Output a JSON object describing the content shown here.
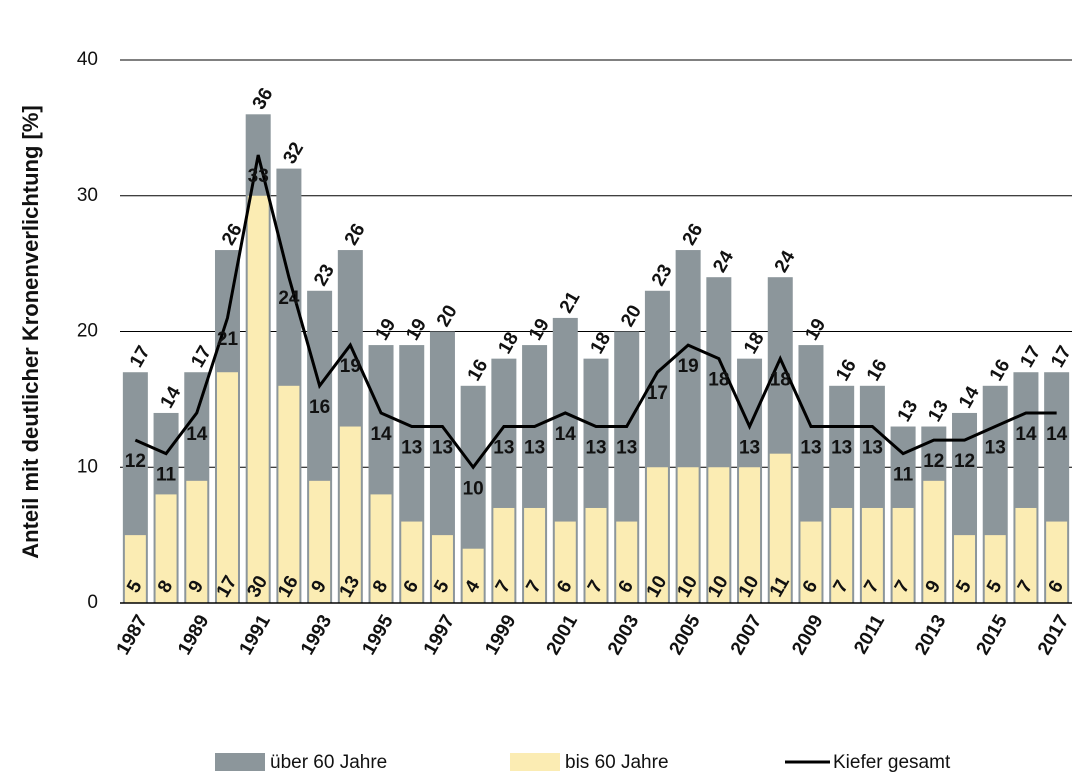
{
  "chart_data": {
    "type": "bar",
    "y_label": "Anteil mit deutlicher Kronenverlichtung [%]",
    "categories": [
      "1987",
      null,
      "1989",
      null,
      "1991",
      null,
      "1993",
      null,
      "1995",
      null,
      "1997",
      null,
      "1999",
      null,
      "2001",
      null,
      "2003",
      null,
      "2005",
      null,
      "2007",
      null,
      "2009",
      null,
      "2011",
      null,
      "2013",
      null,
      "2015",
      null,
      "2017"
    ],
    "series": [
      {
        "name": "über 60 Jahre",
        "color": "#8c969b",
        "type": "bar",
        "values": [
          17,
          14,
          17,
          26,
          36,
          32,
          23,
          26,
          19,
          19,
          20,
          16,
          18,
          19,
          21,
          18,
          20,
          23,
          26,
          24,
          18,
          24,
          19,
          16,
          16,
          13,
          13,
          14,
          16,
          17,
          17
        ]
      },
      {
        "name": "bis 60 Jahre",
        "color": "#fbecb3",
        "type": "bar",
        "values": [
          5,
          8,
          9,
          17,
          30,
          16,
          9,
          13,
          8,
          6,
          5,
          4,
          7,
          7,
          6,
          7,
          6,
          10,
          10,
          10,
          10,
          11,
          6,
          7,
          7,
          7,
          9,
          5,
          5,
          7,
          6
        ]
      },
      {
        "name": "Kiefer gesamt",
        "color": "#000000",
        "type": "line",
        "values": [
          12,
          11,
          14,
          21,
          33,
          24,
          16,
          19,
          14,
          13,
          13,
          10,
          13,
          13,
          14,
          13,
          13,
          17,
          19,
          18,
          13,
          18,
          13,
          13,
          13,
          11,
          12,
          12,
          13,
          14,
          14
        ]
      }
    ],
    "ylim": [
      0,
      40
    ],
    "yticks": [
      0,
      10,
      20,
      30,
      40
    ],
    "grid": true,
    "legend": "bottom"
  }
}
